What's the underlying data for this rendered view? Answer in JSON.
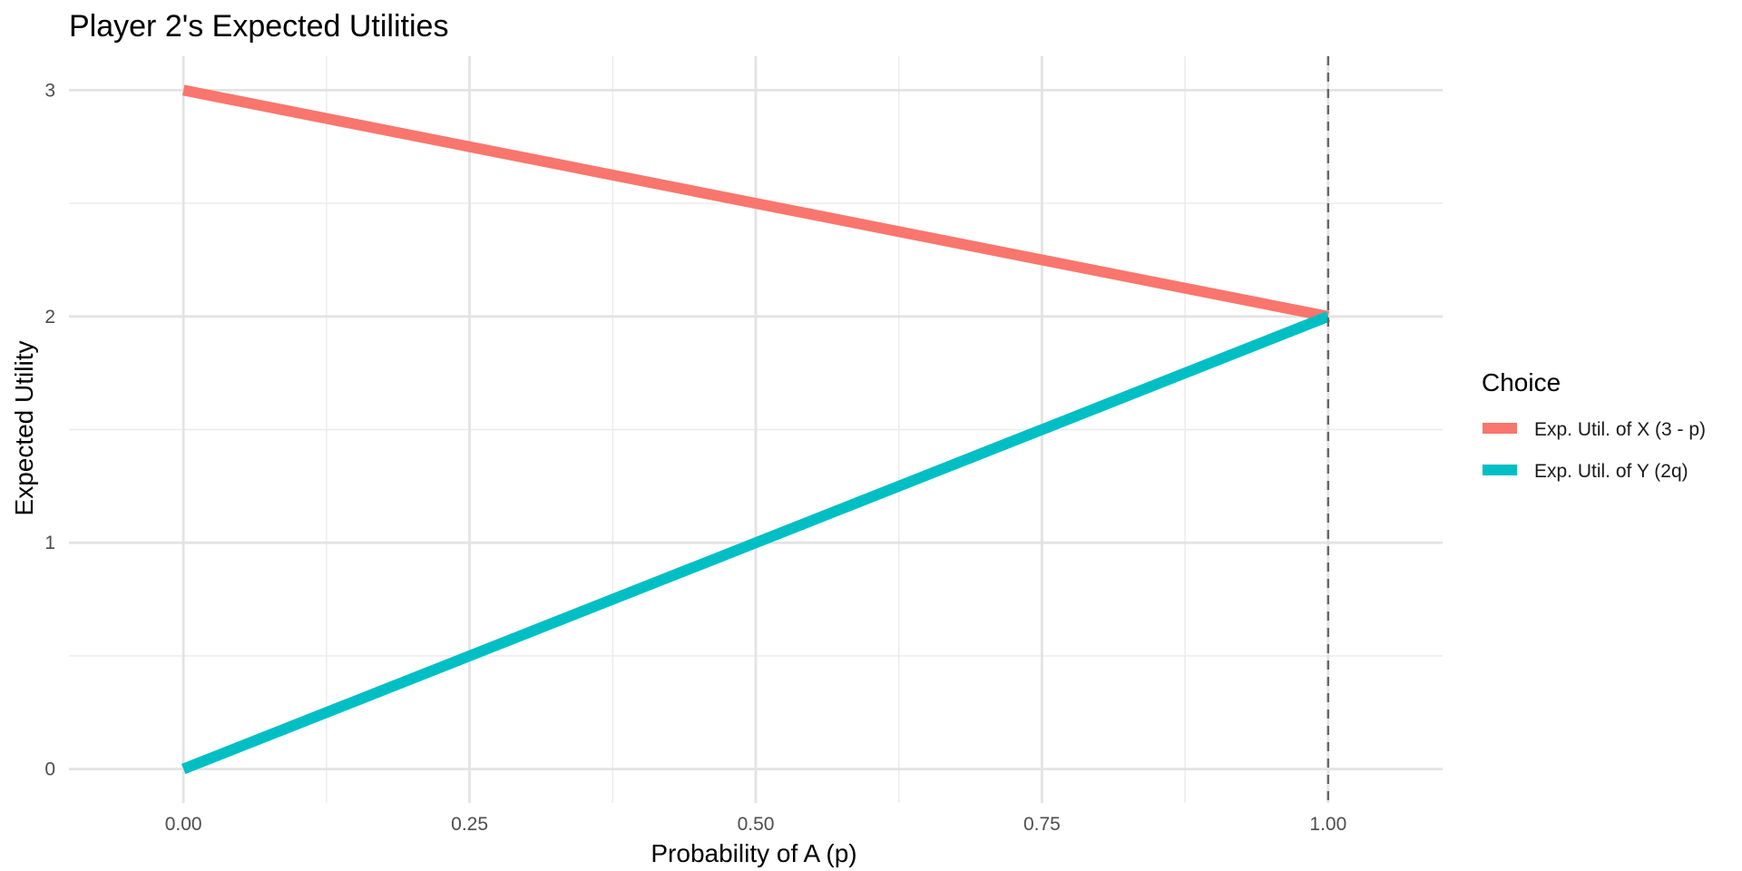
{
  "chart_data": {
    "type": "line",
    "title": "Player 2's Expected Utilities",
    "xlabel": "Probability of A (p)",
    "ylabel": "Expected Utility",
    "xlim": [
      -0.1,
      1.1
    ],
    "ylim": [
      -0.15,
      3.15
    ],
    "x_ticks": [
      0,
      0.25,
      0.5,
      0.75,
      1
    ],
    "x_tick_labels": [
      "0.00",
      "0.25",
      "0.50",
      "0.75",
      "1.00"
    ],
    "x_minor_ticks": [
      0.125,
      0.375,
      0.625,
      0.875
    ],
    "y_ticks": [
      0,
      1,
      2,
      3
    ],
    "y_tick_labels": [
      "0",
      "1",
      "2",
      "3"
    ],
    "y_minor_ticks": [
      0.5,
      1.5,
      2.5
    ],
    "grid": true,
    "legend": {
      "title": "Choice",
      "position": "right"
    },
    "vline": {
      "x": 1,
      "style": "dashed",
      "color": "#666666"
    },
    "series": [
      {
        "name": "Exp. Util. of X (3 - p)",
        "color": "#F8766D",
        "x": [
          0,
          1
        ],
        "y": [
          3,
          2
        ]
      },
      {
        "name": "Exp. Util. of Y (2q)",
        "color": "#00BFC4",
        "x": [
          0,
          1
        ],
        "y": [
          0,
          2
        ]
      }
    ]
  }
}
